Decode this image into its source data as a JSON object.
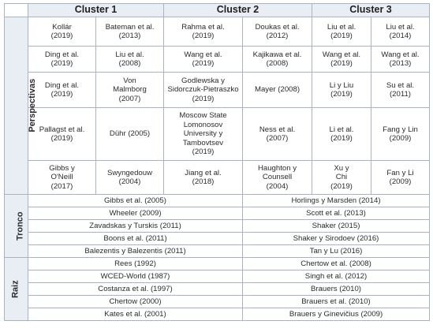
{
  "headers": [
    "Cluster 1",
    "Cluster 2",
    "Cluster 3"
  ],
  "sections": {
    "perspectivas": "Perspectivas",
    "tronco": "Tronco",
    "raiz": "Raiz"
  },
  "perspectivas_rows": [
    [
      "Kollár\n(2019)",
      "Bateman et al.\n(2013)",
      "Rahma et al.\n(2019)",
      "Doukas et al.\n(2012)",
      "Liu et al.\n(2019)",
      "Liu et al.\n(2014)"
    ],
    [
      "Ding et al.\n(2019)",
      "Liu et al.\n(2008)",
      "Wang et al.\n(2019)",
      "Kajikawa et al.\n(2008)",
      "Wang et al.\n(2019)",
      "Wang et al.\n(2013)"
    ],
    [
      "Ding et al.\n(2019)",
      "Von\nMalmborg\n(2007)",
      "Godlewska y\nSidorczuk-Pietraszko\n(2019)",
      "Mayer (2008)",
      "Li y Liu\n(2019)",
      "Su et al.\n(2011)"
    ],
    [
      "Pallagst et al.\n(2019)",
      "Dühr (2005)",
      "Moscow State\nLomonosov\nUniversity y\nTambovtsev\n(2019)",
      "Ness et al.\n(2007)",
      "Li et al.\n(2019)",
      "Fang y Lin\n(2009)"
    ],
    [
      "Gibbs y\nO'Neill\n(2017)",
      "Swyngedouw\n(2004)",
      "Jiang et al.\n(2018)",
      "Haughton y\nCounsell\n(2004)",
      "Xu y\nChi\n(2019)",
      "Fan y Li\n(2009)"
    ]
  ],
  "tronco_rows": [
    [
      "Gibbs et al. (2005)",
      "Horlings y Marsden (2014)"
    ],
    [
      "Wheeler (2009)",
      "Scott et al. (2013)"
    ],
    [
      "Zavadskas y Turskis (2011)",
      "Shaker (2015)"
    ],
    [
      "Boons et al. (2011)",
      "Shaker y Sirodoev (2016)"
    ],
    [
      "Balezentis y Balezentis (2011)",
      "Tan y Lu (2016)"
    ]
  ],
  "raiz_rows": [
    [
      "Rees (1992)",
      "Chertow et al. (2008)"
    ],
    [
      "WCED-World (1987)",
      "Singh et al. (2012)"
    ],
    [
      "Costanza et al. (1997)",
      "Brauers (2010)"
    ],
    [
      "Chertow (2000)",
      "Brauers et al. (2010)"
    ],
    [
      "Kates et al. (2001)",
      "Brauers y Ginevičius (2009)"
    ]
  ]
}
